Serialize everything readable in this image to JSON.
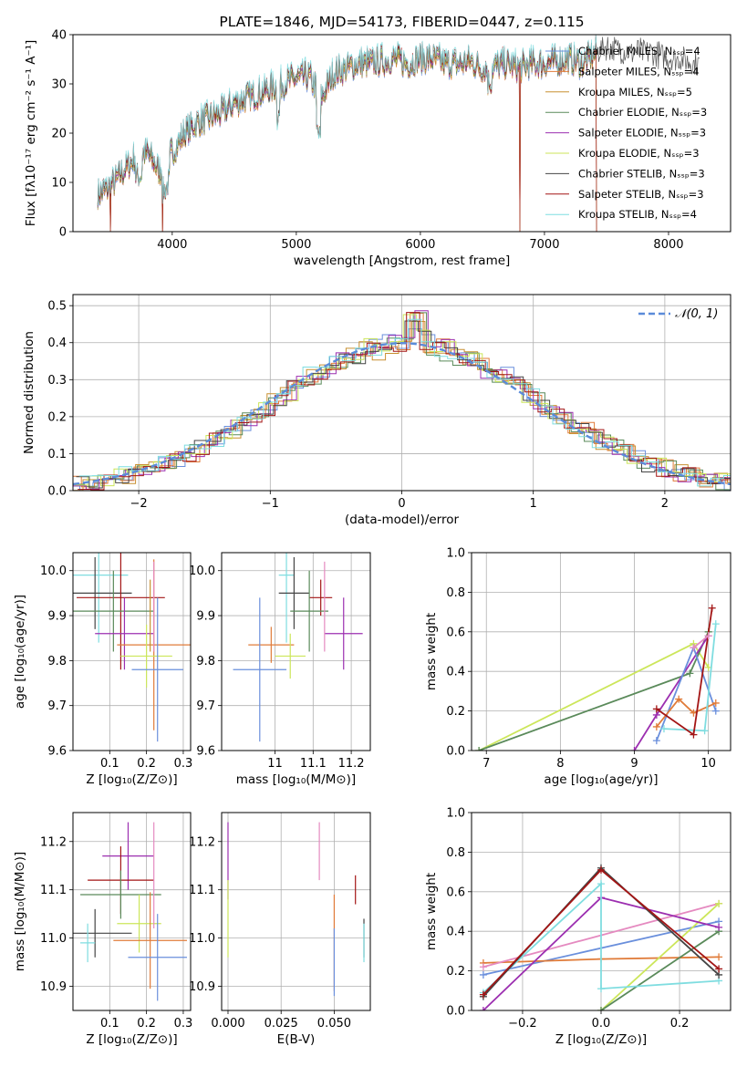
{
  "colors": {
    "Chabrier MILES": "#6a8fdc",
    "Salpeter MILES": "#e07b39",
    "Kroupa MILES": "#c89030",
    "Chabrier ELODIE": "#5a8a5a",
    "Salpeter ELODIE": "#9c2fb0",
    "Kroupa ELODIE": "#cce65a",
    "Chabrier STELIB": "#444444",
    "Salpeter STELIB": "#a31515",
    "Kroupa STELIB": "#7fdde0",
    "pink": "#e58ac0",
    "gaussian": "#5b8bd9"
  },
  "chart_data": [
    {
      "id": "spectrum",
      "type": "line",
      "title": "PLATE=1846, MJD=54173, FIBERID=0447, z=0.115",
      "xlabel": "wavelength [Angstrom, rest frame]",
      "ylabel": "Flux [fλ10⁻¹⁷ erg cm⁻² s⁻¹ A⁻¹]",
      "xlim": [
        3200,
        8500
      ],
      "ylim": [
        0,
        40
      ],
      "xticks": [
        4000,
        5000,
        6000,
        7000,
        8000
      ],
      "yticks": [
        0,
        10,
        20,
        30,
        40
      ],
      "legend_position": "right",
      "legend": [
        "Chabrier MILES, Nₛₛₚ=4",
        "Salpeter MILES, Nₛₛₚ=4",
        "Kroupa MILES, Nₛₛₚ=5",
        "Chabrier ELODIE, Nₛₛₚ=3",
        "Salpeter ELODIE, Nₛₛₚ=3",
        "Kroupa ELODIE, Nₛₛₚ=3",
        "Chabrier STELIB, Nₛₛₚ=3",
        "Salpeter STELIB, Nₛₛₚ=3",
        "Kroupa STELIB, Nₛₛₚ=4"
      ],
      "legend_series": [
        "Chabrier MILES",
        "Salpeter MILES",
        "Kroupa MILES",
        "Chabrier ELODIE",
        "Salpeter ELODIE",
        "Kroupa ELODIE",
        "Chabrier STELIB",
        "Salpeter STELIB",
        "Kroupa STELIB"
      ],
      "envelope": {
        "x": [
          3400,
          3500,
          3600,
          3700,
          3800,
          3900,
          4000,
          4100,
          4200,
          4300,
          4400,
          4500,
          4600,
          4700,
          4800,
          4900,
          5000,
          5100,
          5200,
          5300,
          5400,
          5500,
          5600,
          5700,
          5800,
          5900,
          6000,
          6100,
          6200,
          6300,
          6400,
          6500,
          6600,
          6700,
          6800,
          6900,
          7000,
          7100,
          7200,
          7300,
          7400,
          7500,
          7600,
          7700,
          7800,
          7900,
          8000,
          8100,
          8250
        ],
        "y": [
          7.5,
          9,
          12,
          15,
          16,
          12,
          16,
          20,
          22,
          23,
          24,
          26,
          27,
          28,
          29,
          30,
          31,
          31.5,
          27,
          32,
          33,
          34,
          34,
          34.5,
          35,
          34,
          35,
          35,
          34,
          34,
          34.5,
          33,
          33.5,
          34,
          33,
          34,
          34,
          34.5,
          35,
          34,
          36,
          37,
          36.5,
          36,
          36,
          35.5,
          35,
          34.5,
          33.5
        ]
      },
      "drops_to_zero_x": [
        3500,
        3920,
        6800,
        7420
      ]
    },
    {
      "id": "residuals",
      "type": "histogram",
      "xlabel": "(data-model)/error",
      "ylabel": "Normed distribution",
      "xlim": [
        -2.5,
        2.5
      ],
      "ylim": [
        0,
        0.53
      ],
      "xticks": [
        -2,
        -1,
        0,
        1,
        2
      ],
      "yticks": [
        0,
        0.1,
        0.2,
        0.3,
        0.4,
        0.5
      ],
      "grid": true,
      "legend": "𝒩(0, 1)",
      "legend_position": "top-right",
      "bin_width": 0.1,
      "series_count": 9
    },
    {
      "id": "age-vs-Z",
      "type": "scatter",
      "xlabel": "Z [log₁₀(Z/Z⊙)]",
      "ylabel": "age  [log₁₀(age/yr)]",
      "xlim": [
        0.0,
        0.32
      ],
      "ylim": [
        9.6,
        10.04
      ],
      "xticks": [
        0.1,
        0.2,
        0.3
      ],
      "yticks": [
        9.6,
        9.7,
        9.8,
        9.9,
        10.0
      ],
      "grid": true,
      "points": [
        {
          "series": "Kroupa STELIB",
          "x": 0.07,
          "y": 9.99,
          "xerr": 0.08,
          "yerr": 0.15
        },
        {
          "series": "Chabrier STELIB",
          "x": 0.06,
          "y": 9.95,
          "xerr": 0.1,
          "yerr": 0.08
        },
        {
          "series": "Salpeter STELIB",
          "x": 0.13,
          "y": 9.94,
          "xerr": 0.12,
          "yerr": 0.16
        },
        {
          "series": "Chabrier ELODIE",
          "x": 0.11,
          "y": 9.91,
          "xerr": 0.11,
          "yerr": 0.09
        },
        {
          "series": "Salpeter ELODIE",
          "x": 0.14,
          "y": 9.86,
          "xerr": 0.08,
          "yerr": 0.08
        },
        {
          "series": "Salpeter MILES",
          "x": 0.22,
          "y": 9.835,
          "xerr": 0.1,
          "yerr": 0.19
        },
        {
          "series": "Kroupa ELODIE",
          "x": 0.2,
          "y": 9.81,
          "xerr": 0.07,
          "yerr": 0.07
        },
        {
          "series": "Chabrier MILES",
          "x": 0.23,
          "y": 9.78,
          "xerr": 0.07,
          "yerr": 0.16
        },
        {
          "series": "pink",
          "x": 0.22,
          "y": 9.92,
          "xerr": 0.0,
          "yerr": 0.1
        },
        {
          "series": "Kroupa MILES",
          "x": 0.21,
          "y": 9.9,
          "xerr": 0.0,
          "yerr": 0.08
        }
      ]
    },
    {
      "id": "age-vs-mass",
      "type": "scatter",
      "xlabel": "mass [log₁₀(M/M⊙)]",
      "xlim": [
        10.86,
        11.25
      ],
      "ylim": [
        9.6,
        10.04
      ],
      "xticks": [
        11.0,
        11.1,
        11.2
      ],
      "yticks": [
        9.6,
        9.7,
        9.8,
        9.9,
        10.0
      ],
      "grid": true,
      "points": [
        {
          "series": "Kroupa STELIB",
          "x": 11.03,
          "y": 9.99,
          "xerr": 0.02,
          "yerr": 0.15
        },
        {
          "series": "Chabrier STELIB",
          "x": 11.05,
          "y": 9.95,
          "xerr": 0.04,
          "yerr": 0.08
        },
        {
          "series": "Salpeter STELIB",
          "x": 11.12,
          "y": 9.94,
          "xerr": 0.03,
          "yerr": 0.04
        },
        {
          "series": "Chabrier ELODIE",
          "x": 11.09,
          "y": 9.91,
          "xerr": 0.05,
          "yerr": 0.09
        },
        {
          "series": "Salpeter ELODIE",
          "x": 11.18,
          "y": 9.86,
          "xerr": 0.05,
          "yerr": 0.08
        },
        {
          "series": "Salpeter MILES",
          "x": 10.99,
          "y": 9.835,
          "xerr": 0.06,
          "yerr": 0.04
        },
        {
          "series": "Kroupa ELODIE",
          "x": 11.04,
          "y": 9.81,
          "xerr": 0.04,
          "yerr": 0.05
        },
        {
          "series": "Chabrier MILES",
          "x": 10.96,
          "y": 9.78,
          "xerr": 0.07,
          "yerr": 0.16
        },
        {
          "series": "pink",
          "x": 11.13,
          "y": 9.92,
          "xerr": 0.0,
          "yerr": 0.1
        }
      ]
    },
    {
      "id": "weight-vs-age",
      "type": "line",
      "xlabel": "age  [log₁₀(age/yr)]",
      "ylabel": "mass weight",
      "xlim": [
        6.8,
        10.3
      ],
      "ylim": [
        0,
        1.0
      ],
      "xticks": [
        7,
        8,
        9,
        10
      ],
      "yticks": [
        0.0,
        0.2,
        0.4,
        0.6,
        0.8,
        1.0
      ],
      "grid": true,
      "series": [
        {
          "name": "Kroupa ELODIE",
          "x": [
            6.9,
            9.8,
            10.0
          ],
          "y": [
            0.0,
            0.54,
            0.42
          ]
        },
        {
          "name": "Chabrier ELODIE",
          "x": [
            6.9,
            9.75,
            10.0
          ],
          "y": [
            0.0,
            0.39,
            0.6
          ]
        },
        {
          "name": "Salpeter ELODIE",
          "x": [
            9.0,
            9.3,
            10.0
          ],
          "y": [
            0.0,
            0.18,
            0.58
          ]
        },
        {
          "name": "Chabrier MILES",
          "x": [
            9.3,
            9.8,
            10.1
          ],
          "y": [
            0.05,
            0.52,
            0.2
          ]
        },
        {
          "name": "Salpeter MILES",
          "x": [
            9.3,
            9.6,
            9.8,
            10.1
          ],
          "y": [
            0.12,
            0.26,
            0.19,
            0.24
          ]
        },
        {
          "name": "Kroupa STELIB",
          "x": [
            9.4,
            9.95,
            10.1
          ],
          "y": [
            0.11,
            0.1,
            0.64
          ]
        },
        {
          "name": "Salpeter STELIB",
          "x": [
            9.3,
            9.8,
            10.05
          ],
          "y": [
            0.21,
            0.08,
            0.72
          ]
        },
        {
          "name": "pink",
          "x": [
            9.8,
            10.0
          ],
          "y": [
            0.52,
            0.58
          ]
        }
      ]
    },
    {
      "id": "mass-vs-Z",
      "type": "scatter",
      "xlabel": "Z [log₁₀(Z/Z⊙)]",
      "ylabel": "mass [log₁₀(M/M⊙)]",
      "xlim": [
        0.0,
        0.32
      ],
      "ylim": [
        10.85,
        11.26
      ],
      "xticks": [
        0.1,
        0.2,
        0.3
      ],
      "yticks": [
        10.9,
        11.0,
        11.1,
        11.2
      ],
      "grid": true,
      "points": [
        {
          "series": "Salpeter ELODIE",
          "x": 0.15,
          "y": 11.17,
          "xerr": 0.07,
          "yerr": 0.07
        },
        {
          "series": "Salpeter STELIB",
          "x": 0.13,
          "y": 11.12,
          "xerr": 0.09,
          "yerr": 0.07
        },
        {
          "series": "Chabrier ELODIE",
          "x": 0.13,
          "y": 11.09,
          "xerr": 0.11,
          "yerr": 0.05
        },
        {
          "series": "Kroupa ELODIE",
          "x": 0.18,
          "y": 11.03,
          "xerr": 0.06,
          "yerr": 0.06
        },
        {
          "series": "Chabrier STELIB",
          "x": 0.06,
          "y": 11.01,
          "xerr": 0.1,
          "yerr": 0.05
        },
        {
          "series": "Kroupa STELIB",
          "x": 0.04,
          "y": 10.99,
          "xerr": 0.02,
          "yerr": 0.04
        },
        {
          "series": "Salpeter MILES",
          "x": 0.21,
          "y": 10.995,
          "xerr": 0.1,
          "yerr": 0.1
        },
        {
          "series": "Chabrier MILES",
          "x": 0.23,
          "y": 10.96,
          "xerr": 0.08,
          "yerr": 0.09
        },
        {
          "series": "pink",
          "x": 0.22,
          "y": 11.13,
          "xerr": 0.0,
          "yerr": 0.11
        }
      ]
    },
    {
      "id": "mass-vs-ebv",
      "type": "scatter",
      "xlabel": "E(B-V)",
      "xlim": [
        -0.003,
        0.067
      ],
      "ylim": [
        10.85,
        11.26
      ],
      "xticks": [
        0.0,
        0.025,
        0.05
      ],
      "xticklabels": [
        "0.000",
        "0.025",
        "0.050"
      ],
      "yticks": [
        10.9,
        11.0,
        11.1,
        11.2
      ],
      "grid": true,
      "points": [
        {
          "series": "Salpeter ELODIE",
          "x": 0.0,
          "y": 11.16,
          "xerr": 0.0,
          "yerr": 0.08
        },
        {
          "series": "Kroupa ELODIE",
          "x": 0.0,
          "y": 11.04,
          "xerr": 0.0,
          "yerr": 0.08
        },
        {
          "series": "pink",
          "x": 0.043,
          "y": 11.18,
          "xerr": 0.0,
          "yerr": 0.06
        },
        {
          "series": "Salpeter MILES",
          "x": 0.05,
          "y": 10.99,
          "xerr": 0.0,
          "yerr": 0.1
        },
        {
          "series": "Chabrier MILES",
          "x": 0.05,
          "y": 10.95,
          "xerr": 0.0,
          "yerr": 0.07
        },
        {
          "series": "Salpeter STELIB",
          "x": 0.06,
          "y": 11.1,
          "xerr": 0.0,
          "yerr": 0.03
        },
        {
          "series": "Chabrier STELIB",
          "x": 0.064,
          "y": 11.0,
          "xerr": 0.0,
          "yerr": 0.04
        },
        {
          "series": "Kroupa STELIB",
          "x": 0.064,
          "y": 10.99,
          "xerr": 0.0,
          "yerr": 0.04
        }
      ]
    },
    {
      "id": "weight-vs-Z",
      "type": "line",
      "xlabel": "Z [log₁₀(Z/Z⊙)]",
      "ylabel": "mass weight",
      "xlim": [
        -0.33,
        0.33
      ],
      "ylim": [
        0,
        1.0
      ],
      "xticks": [
        -0.2,
        0.0,
        0.2
      ],
      "xticklabels": [
        "−0.2",
        "0.0",
        "0.2"
      ],
      "yticks": [
        0.0,
        0.2,
        0.4,
        0.6,
        0.8,
        1.0
      ],
      "grid": true,
      "series": [
        {
          "name": "Chabrier MILES",
          "x": [
            -0.3,
            0.3
          ],
          "y": [
            0.18,
            0.45
          ]
        },
        {
          "name": "Salpeter MILES",
          "x": [
            -0.3,
            0.0,
            0.3
          ],
          "y": [
            0.24,
            0.26,
            0.27
          ]
        },
        {
          "name": "pink",
          "x": [
            -0.3,
            0.3
          ],
          "y": [
            0.22,
            0.54
          ]
        },
        {
          "name": "Kroupa ELODIE",
          "x": [
            0.0,
            0.3
          ],
          "y": [
            0.0,
            0.54
          ]
        },
        {
          "name": "Chabrier ELODIE",
          "x": [
            0.0,
            0.3
          ],
          "y": [
            0.0,
            0.4
          ]
        },
        {
          "name": "Salpeter ELODIE",
          "x": [
            -0.3,
            0.0,
            0.3
          ],
          "y": [
            0.0,
            0.57,
            0.42
          ]
        },
        {
          "name": "Kroupa STELIB",
          "x": [
            -0.3,
            0.0,
            0.0,
            0.3
          ],
          "y": [
            0.09,
            0.64,
            0.11,
            0.15
          ]
        },
        {
          "name": "Chabrier STELIB",
          "x": [
            -0.3,
            0.0,
            0.3
          ],
          "y": [
            0.07,
            0.72,
            0.18
          ]
        },
        {
          "name": "Salpeter STELIB",
          "x": [
            -0.3,
            0.0,
            0.3
          ],
          "y": [
            0.08,
            0.71,
            0.21
          ]
        }
      ]
    }
  ]
}
